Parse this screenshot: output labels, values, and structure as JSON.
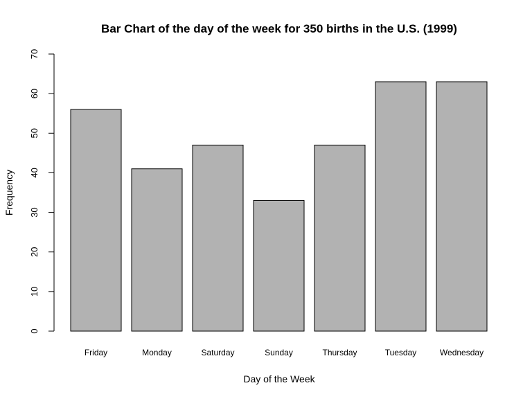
{
  "chart_data": {
    "type": "bar",
    "title": "Bar Chart of the day of the week for 350 births in the U.S. (1999)",
    "xlabel": "Day of the Week",
    "ylabel": "Frequency",
    "categories": [
      "Friday",
      "Monday",
      "Saturday",
      "Sunday",
      "Thursday",
      "Tuesday",
      "Wednesday"
    ],
    "values": [
      56,
      41,
      47,
      33,
      47,
      63,
      63
    ],
    "ylim": [
      0,
      70
    ],
    "yticks": [
      0,
      10,
      20,
      30,
      40,
      50,
      60,
      70
    ],
    "grid": false,
    "legend": "none",
    "colors": {
      "bar_fill": "#b2b2b2",
      "bar_stroke": "#000000"
    }
  }
}
